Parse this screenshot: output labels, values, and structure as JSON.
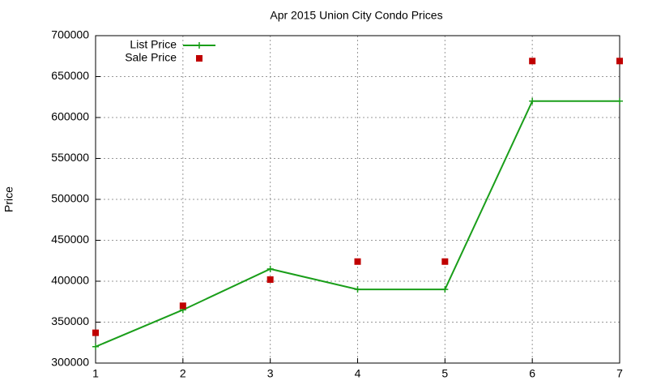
{
  "chart_data": {
    "type": "line",
    "title": "Apr 2015 Union City Condo Prices",
    "y_label": "Price",
    "x": [
      1,
      2,
      3,
      4,
      5,
      6,
      7
    ],
    "series": [
      {
        "name": "List Price",
        "color": "#1a9e1a",
        "mode": "lines+markers",
        "values": [
          320000,
          365000,
          415000,
          390000,
          390000,
          620000,
          620000
        ]
      },
      {
        "name": "Sale Price",
        "color": "#c00000",
        "mode": "markers",
        "values": [
          337000,
          370000,
          402000,
          424000,
          424000,
          669000,
          669000
        ]
      }
    ],
    "xlim": [
      1,
      7
    ],
    "xticks": [
      1,
      2,
      3,
      4,
      5,
      6,
      7
    ],
    "ylim": [
      300000,
      700000
    ],
    "yticks": [
      300000,
      350000,
      400000,
      450000,
      500000,
      550000,
      600000,
      650000,
      700000
    ],
    "grid": true,
    "legend": "top-left"
  }
}
